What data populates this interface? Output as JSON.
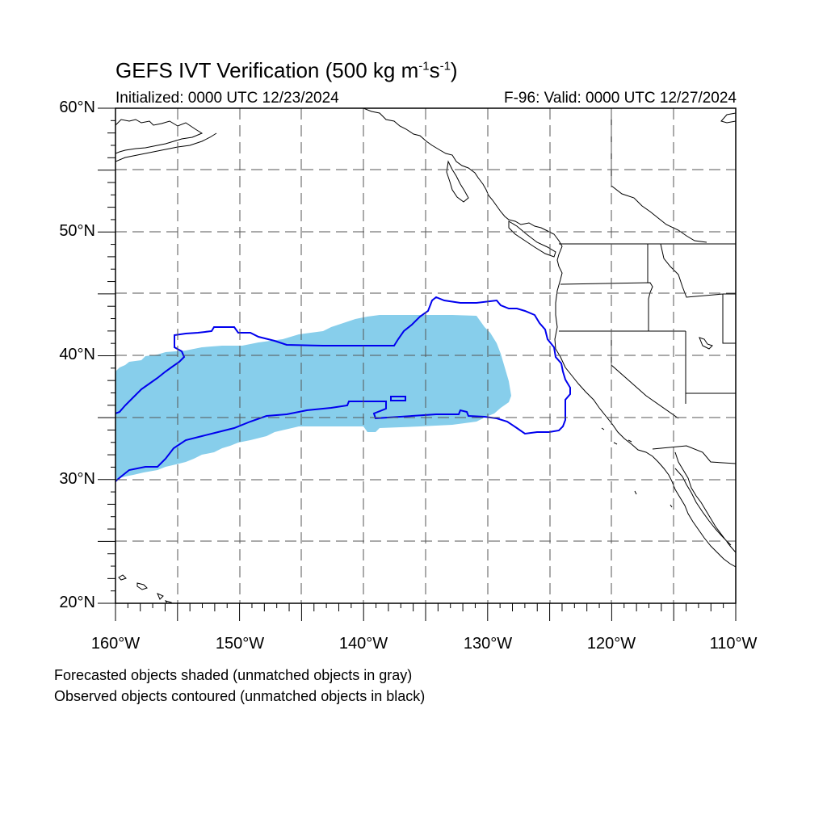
{
  "header": {
    "title_main": "GEFS IVT Verification (500 kg m",
    "title_exp1": "-1",
    "title_mid": "s",
    "title_exp2": "-1",
    "title_end": ")",
    "initialized": "Initialized: 0000 UTC 12/23/2024",
    "valid": "F-96: Valid: 0000 UTC 12/27/2024"
  },
  "axes": {
    "lat_labels": [
      "60°N",
      "50°N",
      "40°N",
      "30°N",
      "20°N"
    ],
    "lon_labels": [
      "160°W",
      "150°W",
      "140°W",
      "130°W",
      "120°W",
      "110°W"
    ],
    "lat_range": [
      20,
      60
    ],
    "lon_range": [
      -160,
      -110
    ],
    "grid": "dashed every 5 degrees"
  },
  "legend": {
    "line1": "Forecasted objects shaded (unmatched objects in gray)",
    "line2": "Observed objects contoured (unmatched objects in black)"
  },
  "colors": {
    "forecast_fill": "#87CEEB",
    "observed_contour": "#0000EE",
    "coastline": "#000000",
    "grid": "#555555"
  }
}
